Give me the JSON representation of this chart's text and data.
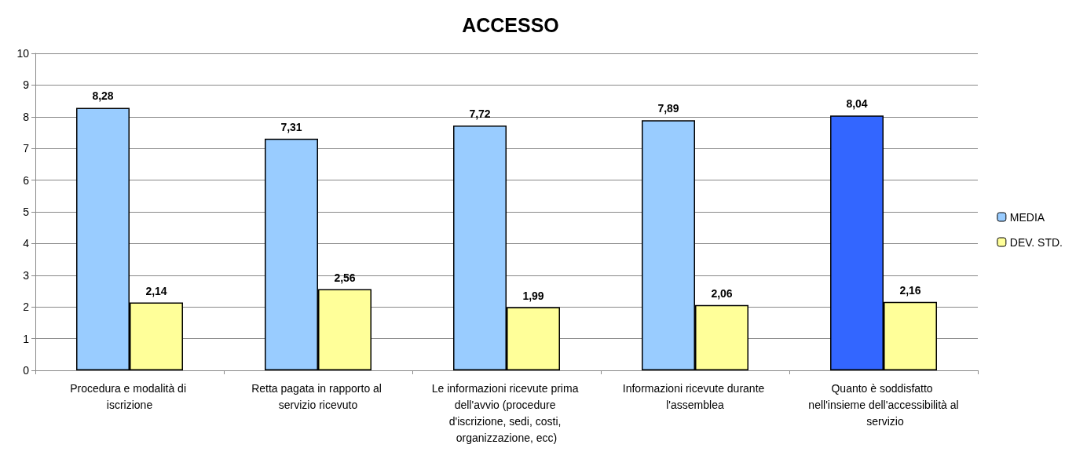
{
  "chart_data": {
    "type": "bar",
    "title": "ACCESSO",
    "categories": [
      "Procedura e modalità di iscrizione",
      "Retta pagata in rapporto al servizio ricevuto",
      "Le informazioni ricevute prima dell'avvio (procedure d'iscrizione, sedi, costi, organizzazione, ecc)",
      "Informazioni ricevute durante l'assemblea",
      "Quanto è soddisfatto nell'insieme dell'accessibilità al servizio"
    ],
    "series": [
      {
        "name": "MEDIA",
        "color": "#99ccff",
        "colors": [
          "#99ccff",
          "#99ccff",
          "#99ccff",
          "#99ccff",
          "#3366ff"
        ],
        "values": [
          8.28,
          7.31,
          7.72,
          7.89,
          8.04
        ],
        "value_labels": [
          "8,28",
          "7,31",
          "7,72",
          "7,89",
          "8,04"
        ]
      },
      {
        "name": "DEV. STD.",
        "color": "#ffff99",
        "values": [
          2.14,
          2.56,
          1.99,
          2.06,
          2.16
        ],
        "value_labels": [
          "2,14",
          "2,56",
          "1,99",
          "2,06",
          "2,16"
        ]
      }
    ],
    "ylim": [
      0,
      10
    ],
    "yticks": [
      0,
      1,
      2,
      3,
      4,
      5,
      6,
      7,
      8,
      9,
      10
    ],
    "grid": "y",
    "legend": "right"
  }
}
